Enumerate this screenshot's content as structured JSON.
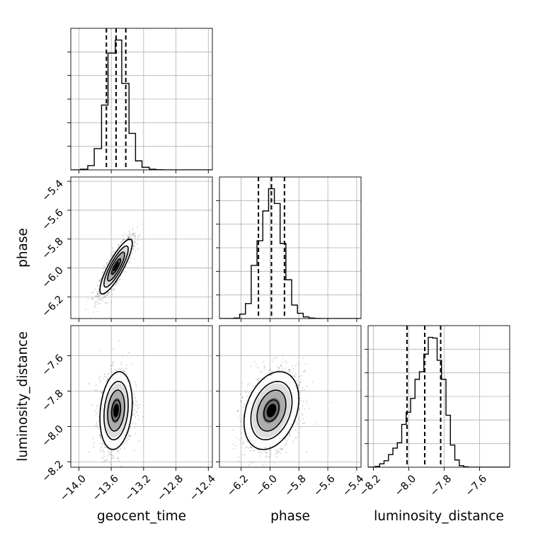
{
  "chart_data": {
    "type": "scatter",
    "title": "",
    "parameters": [
      "geocent_time",
      "phase",
      "luminosity_distance"
    ],
    "ranges": {
      "geocent_time": [
        -14.1,
        -12.35
      ],
      "phase": [
        -6.35,
        -5.37
      ],
      "luminosity_distance": [
        -8.23,
        -7.43
      ]
    },
    "ticks": {
      "geocent_time": [
        "-14.0",
        "-13.6",
        "-13.2",
        "-12.8",
        "-12.4"
      ],
      "phase": [
        "-6.2",
        "-6.0",
        "-5.8",
        "-5.6",
        "-5.4"
      ],
      "luminosity_distance": [
        "-8.2",
        "-8.0",
        "-7.8",
        "-7.6"
      ]
    },
    "xlabels": [
      "geocent_time",
      "phase",
      "luminosity_distance"
    ],
    "ylabels": [
      "phase",
      "luminosity_distance"
    ],
    "grid": true,
    "quantiles": {
      "geocent_time": [
        -13.66,
        -13.54,
        -13.42
      ],
      "phase": [
        -6.08,
        -5.99,
        -5.9
      ],
      "luminosity_distance": [
        -8.01,
        -7.91,
        -7.82
      ]
    },
    "histograms": {
      "geocent_time": {
        "edges": [
          -13.98,
          -13.89,
          -13.81,
          -13.72,
          -13.64,
          -13.55,
          -13.47,
          -13.38,
          -13.3,
          -13.22,
          -13.13,
          -13.05,
          -12.96
        ],
        "counts": [
          3,
          20,
          99,
          302,
          544,
          605,
          403,
          170,
          42,
          12,
          3,
          1
        ]
      },
      "phase": {
        "edges": [
          -6.25,
          -6.21,
          -6.17,
          -6.13,
          -6.09,
          -6.05,
          -6.01,
          -5.97,
          -5.93,
          -5.89,
          -5.85,
          -5.81,
          -5.77,
          -5.73,
          -5.69,
          -5.65
        ],
        "counts": [
          3,
          30,
          100,
          355,
          520,
          719,
          868,
          769,
          502,
          259,
          90,
          35,
          11,
          3,
          1
        ]
      },
      "luminosity_distance": {
        "edges": [
          -8.215,
          -8.19,
          -8.165,
          -8.14,
          -8.115,
          -8.09,
          -8.065,
          -8.04,
          -8.015,
          -7.99,
          -7.965,
          -7.94,
          -7.915,
          -7.89,
          -7.865,
          -7.84,
          -7.815,
          -7.79,
          -7.765,
          -7.74,
          -7.715,
          -7.69,
          -7.665
        ],
        "counts": [
          2,
          10,
          45,
          85,
          165,
          250,
          320,
          560,
          720,
          900,
          1150,
          1250,
          1480,
          1700,
          1690,
          1400,
          1150,
          680,
          290,
          95,
          20,
          5
        ]
      }
    },
    "joint": [
      {
        "x": "geocent_time",
        "y": "phase",
        "center": [
          -13.54,
          -5.99
        ],
        "sigma": [
          0.1,
          0.095
        ],
        "corr": 0.85
      },
      {
        "x": "geocent_time",
        "y": "luminosity_distance",
        "center": [
          -13.54,
          -7.91
        ],
        "sigma": [
          0.1,
          0.11
        ],
        "corr": 0.2
      },
      {
        "x": "phase",
        "y": "luminosity_distance",
        "center": [
          -5.99,
          -7.91
        ],
        "sigma": [
          0.095,
          0.11
        ],
        "corr": 0.3
      }
    ]
  }
}
